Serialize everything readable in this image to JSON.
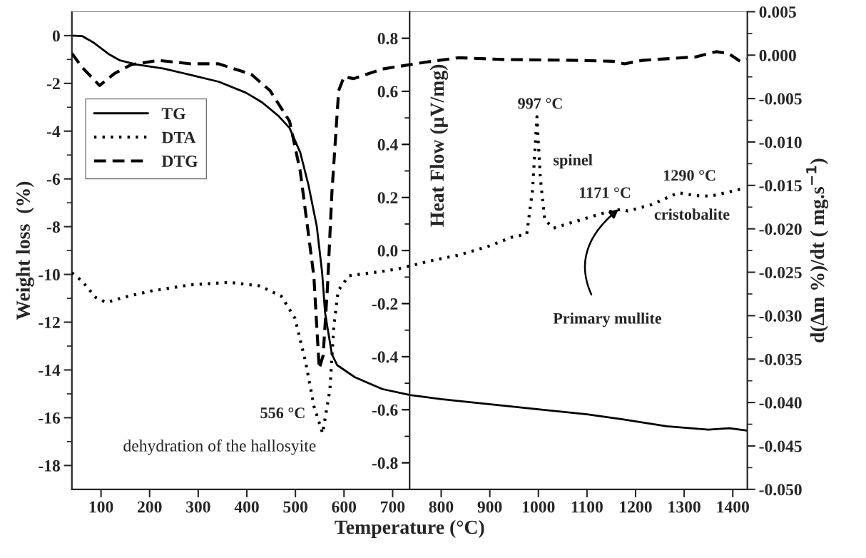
{
  "chart_data": {
    "type": "line",
    "xlabel": "Temperature (°C)",
    "ylabel": "Weight loss  (%)",
    "y2label": "Heat Flow (μV/mg)",
    "y3label": "d(Δm %)/dt ( mg.s$^{−1}$)",
    "xlim": [
      40,
      1430
    ],
    "xticks": [
      100,
      200,
      300,
      400,
      500,
      600,
      700,
      800,
      900,
      1000,
      1100,
      1200,
      1300,
      1400
    ],
    "ylim": [
      -19,
      1
    ],
    "yticks": [
      -18,
      -16,
      -14,
      -12,
      -10,
      -8,
      -6,
      -4,
      -2,
      0
    ],
    "y2lim": [
      -0.9,
      0.9
    ],
    "y2ticks": [
      {
        "value": -0.8,
        "label": "-0.8"
      },
      {
        "value": -0.6,
        "label": "-0.6"
      },
      {
        "value": -0.4,
        "label": "-0.4"
      },
      {
        "value": -0.2,
        "label": "-0.2"
      },
      {
        "value": 0.0,
        "label": "0.0"
      },
      {
        "value": 0.2,
        "label": "0.2"
      },
      {
        "value": 0.4,
        "label": "0.4"
      },
      {
        "value": 0.6,
        "label": "0.6"
      },
      {
        "value": 0.8,
        "label": "0.8"
      }
    ],
    "y3lim": [
      -0.05,
      0.005
    ],
    "y3ticks": [
      {
        "value": -0.05,
        "label": "-0.050"
      },
      {
        "value": -0.045,
        "label": "-0.045"
      },
      {
        "value": -0.04,
        "label": "-0.040"
      },
      {
        "value": -0.035,
        "label": "-0.035"
      },
      {
        "value": -0.03,
        "label": "-0.030"
      },
      {
        "value": -0.025,
        "label": "-0.025"
      },
      {
        "value": -0.02,
        "label": "-0.020"
      },
      {
        "value": -0.015,
        "label": "-0.015"
      },
      {
        "value": -0.01,
        "label": "-0.010"
      },
      {
        "value": -0.005,
        "label": "-0.005"
      },
      {
        "value": 0.0,
        "label": "0.000"
      },
      {
        "value": 0.005,
        "label": "0.005"
      }
    ],
    "grid": false,
    "legend": "top left",
    "marker": "none",
    "series": [
      {
        "name": "TG",
        "color": "#000000",
        "axis": "y",
        "line_style": "solid",
        "x": [
          40,
          61,
          83,
          117,
          139,
          173,
          229,
          285,
          342,
          398,
          431,
          465,
          488,
          510,
          527,
          544,
          555,
          561,
          575,
          586,
          622,
          679,
          736,
          800,
          898,
          1000,
          1100,
          1173,
          1264,
          1350,
          1393,
          1429
        ],
        "values": [
          0,
          -0.02,
          -0.27,
          -0.79,
          -1.04,
          -1.21,
          -1.38,
          -1.65,
          -1.93,
          -2.39,
          -2.79,
          -3.36,
          -3.87,
          -4.9,
          -6.27,
          -7.99,
          -9.93,
          -11.6,
          -13.34,
          -13.8,
          -14.3,
          -14.8,
          -15.05,
          -15.22,
          -15.43,
          -15.65,
          -15.86,
          -16.07,
          -16.36,
          -16.5,
          -16.44,
          -16.54
        ]
      },
      {
        "name": "DTA",
        "color": "#000000",
        "axis": "y2",
        "line_style": "dotted",
        "x": [
          40,
          61,
          89,
          111,
          145,
          201,
          285,
          364,
          426,
          471,
          499,
          521,
          538,
          556,
          571,
          579,
          588,
          610,
          677,
          714,
          775,
          836,
          897,
          945,
          976,
          988,
          997,
          1004,
          1013,
          1031,
          1080,
          1141,
          1172,
          1184,
          1233,
          1288,
          1324,
          1355,
          1425
        ],
        "values": [
          -0.084,
          -0.115,
          -0.177,
          -0.196,
          -0.177,
          -0.153,
          -0.129,
          -0.12,
          -0.133,
          -0.172,
          -0.255,
          -0.42,
          -0.586,
          -0.689,
          -0.524,
          -0.286,
          -0.151,
          -0.095,
          -0.079,
          -0.068,
          -0.04,
          -0.017,
          0.016,
          0.05,
          0.062,
          0.229,
          0.504,
          0.274,
          0.117,
          0.084,
          0.112,
          0.145,
          0.156,
          0.149,
          0.173,
          0.218,
          0.207,
          0.205,
          0.235
        ]
      },
      {
        "name": "DTG",
        "color": "#000000",
        "axis": "y3",
        "line_style": "dashed",
        "x": [
          40,
          61,
          97,
          128,
          162,
          218,
          285,
          342,
          409,
          448,
          488,
          510,
          527,
          538,
          549,
          557,
          566,
          575,
          589,
          600,
          620,
          679,
          769,
          836,
          927,
          1080,
          1153,
          1177,
          1214,
          1324,
          1366,
          1391,
          1415,
          1428
        ],
        "values": [
          0.0002,
          -0.0014,
          -0.0035,
          -0.0021,
          -0.0011,
          -0.0006,
          -0.001,
          -0.001,
          -0.0022,
          -0.0041,
          -0.0076,
          -0.0134,
          -0.0207,
          -0.0255,
          -0.0361,
          -0.0346,
          -0.0267,
          -0.0159,
          -0.0041,
          -0.0025,
          -0.0027,
          -0.0016,
          -0.0008,
          -0.0003,
          -0.0005,
          -0.0006,
          -0.0007,
          -0.001,
          -0.0006,
          -0.0002,
          0.0004,
          0.0002,
          -0.0007,
          -0.0004
        ]
      }
    ],
    "annotations": [
      "556 °C",
      "dehydration of the hallosyite",
      "997 °C",
      "spinel",
      "1171 °C",
      "1290 °C",
      "cristobalite",
      {
        "text": "Primary mullite",
        "x": 1165,
        "y": -7.27
      }
    ]
  }
}
